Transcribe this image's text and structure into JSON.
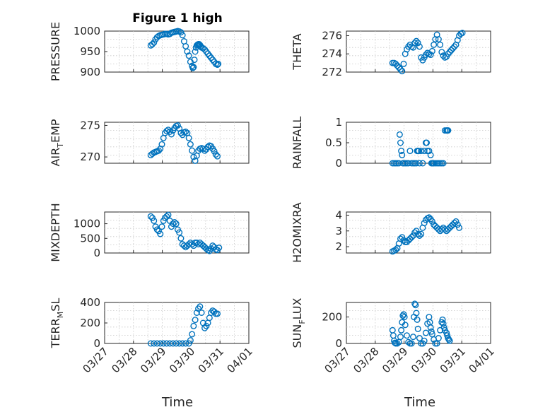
{
  "figure": {
    "title": "Figure 1 high"
  },
  "colors": {
    "marker": "#0072BD",
    "axis": "#262626",
    "grid": "#c8c8c8"
  },
  "xaxis": {
    "label": "Time",
    "ticks": [
      "03/27",
      "03/28",
      "03/29",
      "03/30",
      "03/31",
      "04/01"
    ],
    "range_days": [
      0,
      5
    ]
  },
  "chart_data": [
    {
      "type": "scatter",
      "ylabel": "PRESSURE",
      "ylim": [
        900,
        1000
      ],
      "yticks": [
        "900",
        "950",
        "1000"
      ],
      "grid": true,
      "x": [
        0.0,
        0.1,
        0.2,
        0.3,
        0.4,
        0.5,
        0.6,
        0.7,
        0.8,
        0.9,
        1.0,
        1.1,
        1.2,
        1.3,
        1.4,
        1.5,
        1.6,
        1.7,
        1.8,
        1.9,
        2.0,
        2.1,
        2.2,
        2.3,
        2.4,
        2.5,
        2.6,
        2.65,
        2.7,
        2.75,
        2.8,
        2.85,
        2.9,
        2.95,
        3.0,
        3.05,
        3.1,
        3.15,
        3.2,
        3.3,
        3.4,
        3.5,
        3.6,
        3.7,
        3.8,
        3.9,
        4.0,
        4.1,
        4.2,
        4.25
      ],
      "y": [
        965,
        968,
        972,
        980,
        985,
        988,
        990,
        991,
        992,
        993,
        993,
        992,
        993,
        996,
        997,
        998,
        999,
        1000,
        999,
        997,
        990,
        975,
        963,
        950,
        940,
        925,
        915,
        910,
        912,
        930,
        950,
        960,
        965,
        967,
        968,
        968,
        966,
        963,
        960,
        958,
        955,
        950,
        945,
        940,
        935,
        930,
        925,
        920,
        918,
        920
      ]
    },
    {
      "type": "scatter",
      "ylabel": "THETA",
      "ylim": [
        272,
        276.5
      ],
      "yticks": [
        "272",
        "274",
        "276"
      ],
      "grid": true,
      "x": [
        0.0,
        0.1,
        0.2,
        0.3,
        0.4,
        0.5,
        0.6,
        0.7,
        0.8,
        0.9,
        1.0,
        1.1,
        1.2,
        1.3,
        1.4,
        1.5,
        1.6,
        1.7,
        1.8,
        1.9,
        2.0,
        2.1,
        2.2,
        2.3,
        2.4,
        2.5,
        2.6,
        2.7,
        2.8,
        2.9,
        3.0,
        3.1,
        3.2,
        3.3,
        3.4,
        3.5,
        3.6,
        3.7,
        3.8,
        3.9,
        4.0,
        4.1,
        4.2,
        4.3,
        4.4
      ],
      "y": [
        273.0,
        273.0,
        272.9,
        272.7,
        272.5,
        272.3,
        272.1,
        272.9,
        274.0,
        274.5,
        274.8,
        275.0,
        274.8,
        274.7,
        275.2,
        275.4,
        275.2,
        274.8,
        273.6,
        273.3,
        273.6,
        273.9,
        274.1,
        274.0,
        273.9,
        274.3,
        275.0,
        275.6,
        276.1,
        275.6,
        275.0,
        274.2,
        273.8,
        273.6,
        273.7,
        274.0,
        274.2,
        274.4,
        274.6,
        274.8,
        275.0,
        275.5,
        276.0,
        276.2,
        276.3
      ]
    },
    {
      "type": "scatter",
      "ylabel": "AIR_TEMP",
      "ylim": [
        269,
        275.5
      ],
      "yticks": [
        "270",
        "275"
      ],
      "grid": true,
      "x": [
        0.0,
        0.1,
        0.2,
        0.3,
        0.4,
        0.5,
        0.6,
        0.7,
        0.8,
        0.9,
        1.0,
        1.1,
        1.2,
        1.3,
        1.4,
        1.5,
        1.6,
        1.7,
        1.8,
        1.9,
        2.0,
        2.1,
        2.2,
        2.3,
        2.4,
        2.5,
        2.6,
        2.7,
        2.8,
        2.9,
        3.0,
        3.1,
        3.2,
        3.3,
        3.4,
        3.5,
        3.6,
        3.7,
        3.8,
        3.9,
        4.0,
        4.1,
        4.2
      ],
      "y": [
        270.3,
        270.5,
        270.7,
        270.8,
        270.9,
        271.0,
        271.3,
        272.0,
        273.0,
        273.8,
        274.1,
        274.3,
        274.0,
        273.6,
        274.2,
        274.6,
        274.9,
        275.0,
        274.5,
        273.8,
        273.5,
        273.9,
        274.0,
        273.8,
        273.0,
        272.0,
        271.0,
        270.0,
        269.4,
        270.2,
        271.0,
        271.3,
        271.4,
        271.3,
        271.0,
        271.2,
        271.6,
        271.8,
        271.7,
        271.3,
        270.9,
        270.4,
        270.1
      ]
    },
    {
      "type": "scatter",
      "ylabel": "RAINFALL",
      "ylim": [
        0,
        1
      ],
      "yticks": [
        "0",
        "0.5",
        "1"
      ],
      "grid": true,
      "x": [
        0.0,
        0.1,
        0.2,
        0.3,
        0.4,
        0.45,
        0.5,
        0.55,
        0.6,
        0.65,
        0.7,
        0.8,
        0.9,
        1.0,
        1.1,
        1.2,
        1.3,
        1.4,
        1.5,
        1.55,
        1.6,
        1.65,
        1.7,
        1.8,
        1.9,
        2.0,
        2.1,
        2.15,
        2.2,
        2.3,
        2.4,
        2.45,
        2.5,
        2.55,
        2.6,
        2.7,
        2.8,
        2.9,
        3.0,
        3.1,
        3.2,
        3.3,
        3.4,
        3.45,
        3.5
      ],
      "y": [
        0,
        0,
        0,
        0,
        0,
        0.7,
        0.5,
        0.3,
        0.2,
        0,
        0,
        0,
        0,
        0,
        0.3,
        0,
        0,
        0,
        0,
        0.3,
        0.3,
        0.3,
        0,
        0.3,
        0,
        0.3,
        0.5,
        0.5,
        0.3,
        0.3,
        0.2,
        0,
        0,
        0,
        0,
        0,
        0,
        0,
        0,
        0,
        0,
        0.8,
        0.8,
        0.8,
        0.8
      ]
    },
    {
      "type": "scatter",
      "ylabel": "MIXDEPTH",
      "ylim": [
        0,
        1400
      ],
      "yticks": [
        "0",
        "500",
        "1000"
      ],
      "grid": true,
      "x": [
        0.0,
        0.1,
        0.2,
        0.3,
        0.4,
        0.5,
        0.6,
        0.7,
        0.8,
        0.9,
        1.0,
        1.1,
        1.2,
        1.3,
        1.4,
        1.5,
        1.6,
        1.7,
        1.8,
        1.9,
        2.0,
        2.1,
        2.2,
        2.3,
        2.4,
        2.5,
        2.6,
        2.7,
        2.8,
        2.9,
        3.0,
        3.1,
        3.2,
        3.3,
        3.4,
        3.5,
        3.6,
        3.7,
        3.8,
        3.9,
        4.0,
        4.1,
        4.2,
        4.3
      ],
      "y": [
        1250,
        1200,
        1100,
        900,
        800,
        750,
        650,
        900,
        1100,
        1200,
        1250,
        1300,
        1100,
        900,
        1000,
        1050,
        1000,
        800,
        700,
        500,
        300,
        250,
        200,
        250,
        300,
        350,
        300,
        250,
        350,
        350,
        300,
        350,
        300,
        250,
        200,
        150,
        100,
        70,
        150,
        250,
        200,
        120,
        100,
        180
      ]
    },
    {
      "type": "scatter",
      "ylabel": "H2OMIXRA",
      "ylim": [
        1.6,
        4.2
      ],
      "yticks": [
        "2",
        "3",
        "4"
      ],
      "grid": true,
      "x": [
        0.0,
        0.1,
        0.2,
        0.3,
        0.4,
        0.5,
        0.6,
        0.7,
        0.8,
        0.9,
        1.0,
        1.1,
        1.2,
        1.3,
        1.4,
        1.5,
        1.6,
        1.7,
        1.8,
        1.9,
        2.0,
        2.1,
        2.2,
        2.3,
        2.4,
        2.5,
        2.6,
        2.7,
        2.8,
        2.9,
        3.0,
        3.1,
        3.2,
        3.3,
        3.4,
        3.5,
        3.6,
        3.7,
        3.8,
        3.9,
        4.0,
        4.1,
        4.2
      ],
      "y": [
        1.7,
        1.75,
        1.8,
        1.9,
        2.2,
        2.5,
        2.6,
        2.4,
        2.3,
        2.3,
        2.4,
        2.5,
        2.6,
        2.7,
        2.9,
        3.0,
        2.8,
        2.7,
        2.8,
        3.2,
        3.5,
        3.7,
        3.8,
        3.85,
        3.75,
        3.6,
        3.4,
        3.3,
        3.2,
        3.1,
        3.0,
        3.1,
        3.2,
        3.1,
        3.0,
        3.1,
        3.2,
        3.3,
        3.4,
        3.5,
        3.6,
        3.4,
        3.2
      ]
    },
    {
      "type": "scatter",
      "ylabel": "TERR_MSL",
      "ylim": [
        0,
        400
      ],
      "yticks": [
        "0",
        "200",
        "400"
      ],
      "grid": true,
      "x": [
        0.0,
        0.2,
        0.4,
        0.6,
        0.8,
        1.0,
        1.2,
        1.4,
        1.6,
        1.8,
        2.0,
        2.2,
        2.4,
        2.5,
        2.6,
        2.7,
        2.8,
        2.9,
        3.0,
        3.1,
        3.2,
        3.3,
        3.4,
        3.5,
        3.6,
        3.7,
        3.8,
        3.9,
        4.0,
        4.1,
        4.2
      ],
      "y": [
        0,
        0,
        0,
        0,
        0,
        0,
        0,
        0,
        0,
        0,
        0,
        0,
        0,
        30,
        90,
        170,
        230,
        300,
        340,
        360,
        300,
        200,
        150,
        170,
        200,
        250,
        300,
        320,
        310,
        290,
        290
      ]
    },
    {
      "type": "scatter",
      "ylabel": "SUN_FLUX",
      "ylim": [
        0,
        310
      ],
      "yticks": [
        "0",
        "200"
      ],
      "grid": true,
      "x": [
        0.0,
        0.05,
        0.1,
        0.15,
        0.2,
        0.3,
        0.4,
        0.5,
        0.55,
        0.6,
        0.65,
        0.7,
        0.75,
        0.8,
        0.9,
        1.0,
        1.1,
        1.2,
        1.3,
        1.35,
        1.4,
        1.45,
        1.5,
        1.55,
        1.6,
        1.7,
        1.8,
        1.9,
        2.0,
        2.1,
        2.2,
        2.3,
        2.35,
        2.4,
        2.45,
        2.5,
        2.6,
        2.7,
        2.8,
        2.9,
        3.0,
        3.1,
        3.15,
        3.2,
        3.25,
        3.3,
        3.4,
        3.45,
        3.5,
        3.55,
        3.6
      ],
      "y": [
        100,
        60,
        20,
        5,
        0,
        0,
        10,
        50,
        100,
        160,
        210,
        220,
        200,
        140,
        60,
        10,
        0,
        0,
        50,
        200,
        300,
        290,
        230,
        180,
        110,
        40,
        0,
        0,
        20,
        80,
        150,
        200,
        160,
        120,
        90,
        70,
        30,
        0,
        0,
        40,
        100,
        160,
        180,
        150,
        120,
        100,
        80,
        60,
        40,
        30,
        20
      ]
    }
  ]
}
